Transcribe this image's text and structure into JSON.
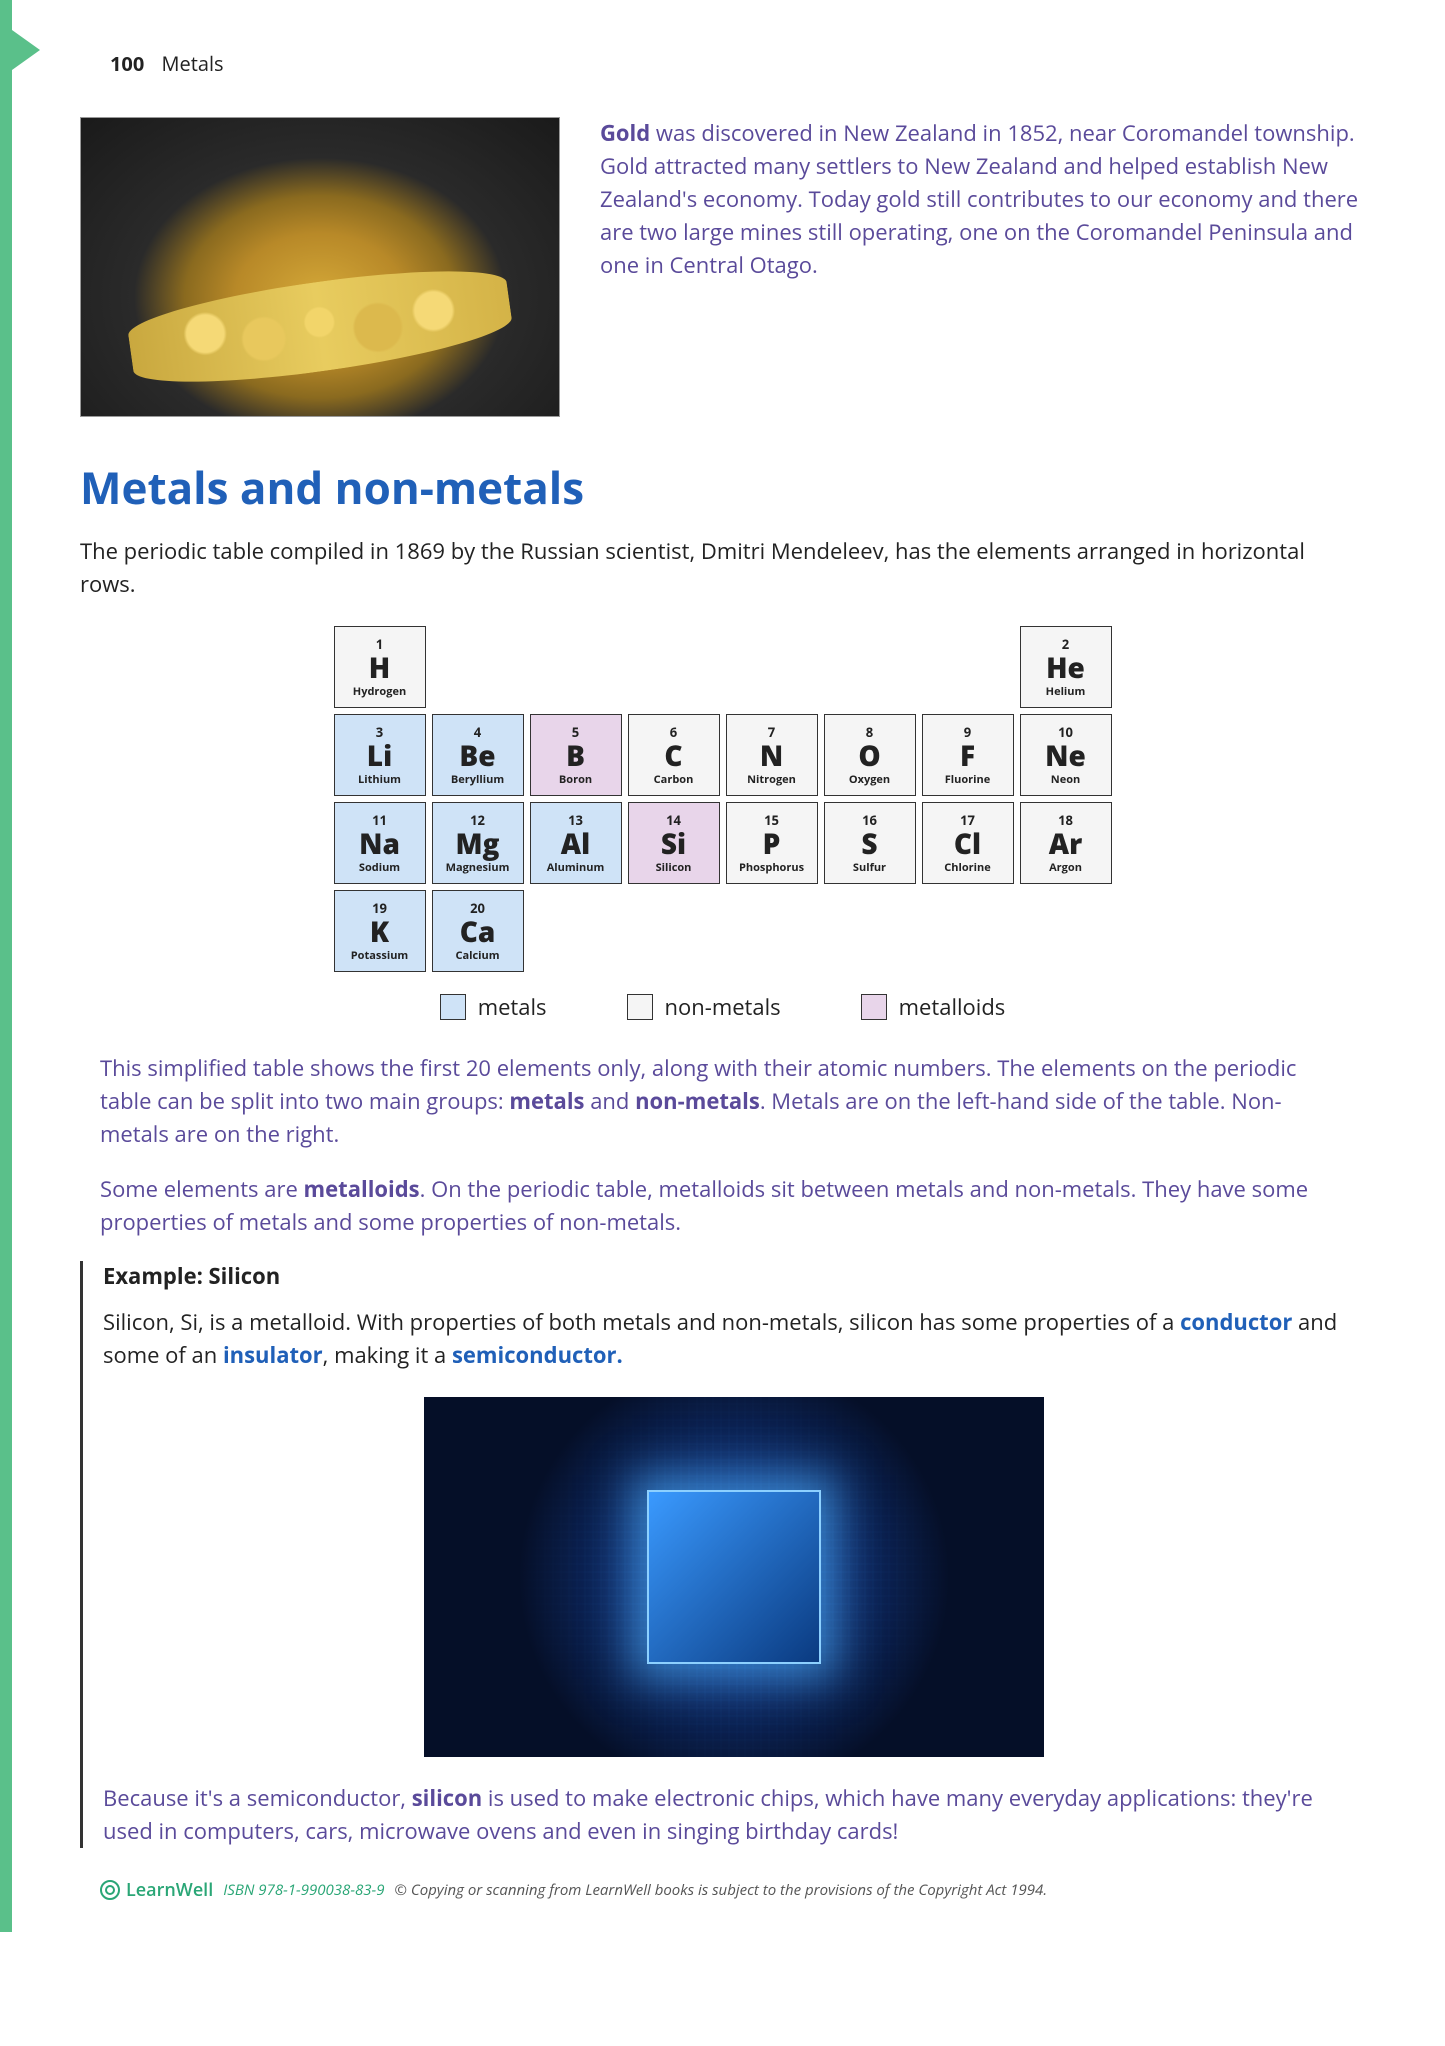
{
  "header": {
    "page_number": "100",
    "chapter": "Metals"
  },
  "intro": {
    "bold_lead": "Gold",
    "text": " was discovered in New Zealand in 1852, near Coromandel township. Gold attracted many settlers to New Zealand and helped establish New Zealand's economy. Today gold still contributes to our economy and there are two large mines still operating, one on the Coromandel Peninsula and one in Central Otago."
  },
  "section_title": "Metals and non-metals",
  "lead_para": "The periodic table compiled in 1869 by the Russian scientist, Dmitri Mendeleev, has the elements arranged in horizontal rows.",
  "colors": {
    "metal": "#cfe3f7",
    "nonmetal": "#f5f5f5",
    "metalloid": "#e8d5ea",
    "accent_purple": "#5a4a9a",
    "accent_blue": "#2060b8",
    "side_green": "#5ac08a"
  },
  "elements": [
    {
      "num": "1",
      "sym": "H",
      "name": "Hydrogen",
      "cat": "nonmetal",
      "col": 1,
      "row": 1
    },
    {
      "num": "2",
      "sym": "He",
      "name": "Helium",
      "cat": "nonmetal",
      "col": 8,
      "row": 1
    },
    {
      "num": "3",
      "sym": "Li",
      "name": "Lithium",
      "cat": "metal",
      "col": 1,
      "row": 2
    },
    {
      "num": "4",
      "sym": "Be",
      "name": "Beryllium",
      "cat": "metal",
      "col": 2,
      "row": 2
    },
    {
      "num": "5",
      "sym": "B",
      "name": "Boron",
      "cat": "metalloid",
      "col": 3,
      "row": 2
    },
    {
      "num": "6",
      "sym": "C",
      "name": "Carbon",
      "cat": "nonmetal",
      "col": 4,
      "row": 2
    },
    {
      "num": "7",
      "sym": "N",
      "name": "Nitrogen",
      "cat": "nonmetal",
      "col": 5,
      "row": 2
    },
    {
      "num": "8",
      "sym": "O",
      "name": "Oxygen",
      "cat": "nonmetal",
      "col": 6,
      "row": 2
    },
    {
      "num": "9",
      "sym": "F",
      "name": "Fluorine",
      "cat": "nonmetal",
      "col": 7,
      "row": 2
    },
    {
      "num": "10",
      "sym": "Ne",
      "name": "Neon",
      "cat": "nonmetal",
      "col": 8,
      "row": 2
    },
    {
      "num": "11",
      "sym": "Na",
      "name": "Sodium",
      "cat": "metal",
      "col": 1,
      "row": 3
    },
    {
      "num": "12",
      "sym": "Mg",
      "name": "Magnesium",
      "cat": "metal",
      "col": 2,
      "row": 3
    },
    {
      "num": "13",
      "sym": "Al",
      "name": "Aluminum",
      "cat": "metal",
      "col": 3,
      "row": 3
    },
    {
      "num": "14",
      "sym": "Si",
      "name": "Silicon",
      "cat": "metalloid",
      "col": 4,
      "row": 3
    },
    {
      "num": "15",
      "sym": "P",
      "name": "Phosphorus",
      "cat": "nonmetal",
      "col": 5,
      "row": 3
    },
    {
      "num": "16",
      "sym": "S",
      "name": "Sulfur",
      "cat": "nonmetal",
      "col": 6,
      "row": 3
    },
    {
      "num": "17",
      "sym": "Cl",
      "name": "Chlorine",
      "cat": "nonmetal",
      "col": 7,
      "row": 3
    },
    {
      "num": "18",
      "sym": "Ar",
      "name": "Argon",
      "cat": "nonmetal",
      "col": 8,
      "row": 3
    },
    {
      "num": "19",
      "sym": "K",
      "name": "Potassium",
      "cat": "metal",
      "col": 1,
      "row": 4
    },
    {
      "num": "20",
      "sym": "Ca",
      "name": "Calcium",
      "cat": "metal",
      "col": 2,
      "row": 4
    }
  ],
  "legend": {
    "metals": "metals",
    "nonmetals": "non-metals",
    "metalloids": "metalloids"
  },
  "purple1_pre": "This simplified table shows the first 20 elements only, along with their atomic numbers. The elements on the periodic table can be split into two main groups: ",
  "purple1_b1": "metals",
  "purple1_mid": " and ",
  "purple1_b2": "non-metals",
  "purple1_post": ". Metals are on the left-hand side of the table. Non-metals are on the right.",
  "purple2_pre": "Some elements are ",
  "purple2_b": "metalloids",
  "purple2_post": ". On the periodic table, metalloids sit between metals and non-metals. They have some properties of metals and some properties of non-metals.",
  "example": {
    "title": "Example: Silicon",
    "line1_pre": "Silicon, Si, is a metalloid. With properties of both metals and non-metals, silicon has some properties of a ",
    "b_conductor": "conductor",
    "mid1": " and some of an ",
    "b_insulator": "insulator",
    "mid2": ", making it a ",
    "b_semi": "semiconductor.",
    "line2_pre": "Because it's a semiconductor, ",
    "b_silicon": "silicon",
    "line2_post": " is used to make electronic chips, which have many everyday applications: they're used in computers, cars, microwave ovens and even in singing birthday cards!"
  },
  "footer": {
    "brand": "LearnWell",
    "isbn": "ISBN 978-1-990038-83-9",
    "copyright": "© Copying or scanning from LearnWell books is subject to the provisions of the Copyright Act 1994."
  }
}
